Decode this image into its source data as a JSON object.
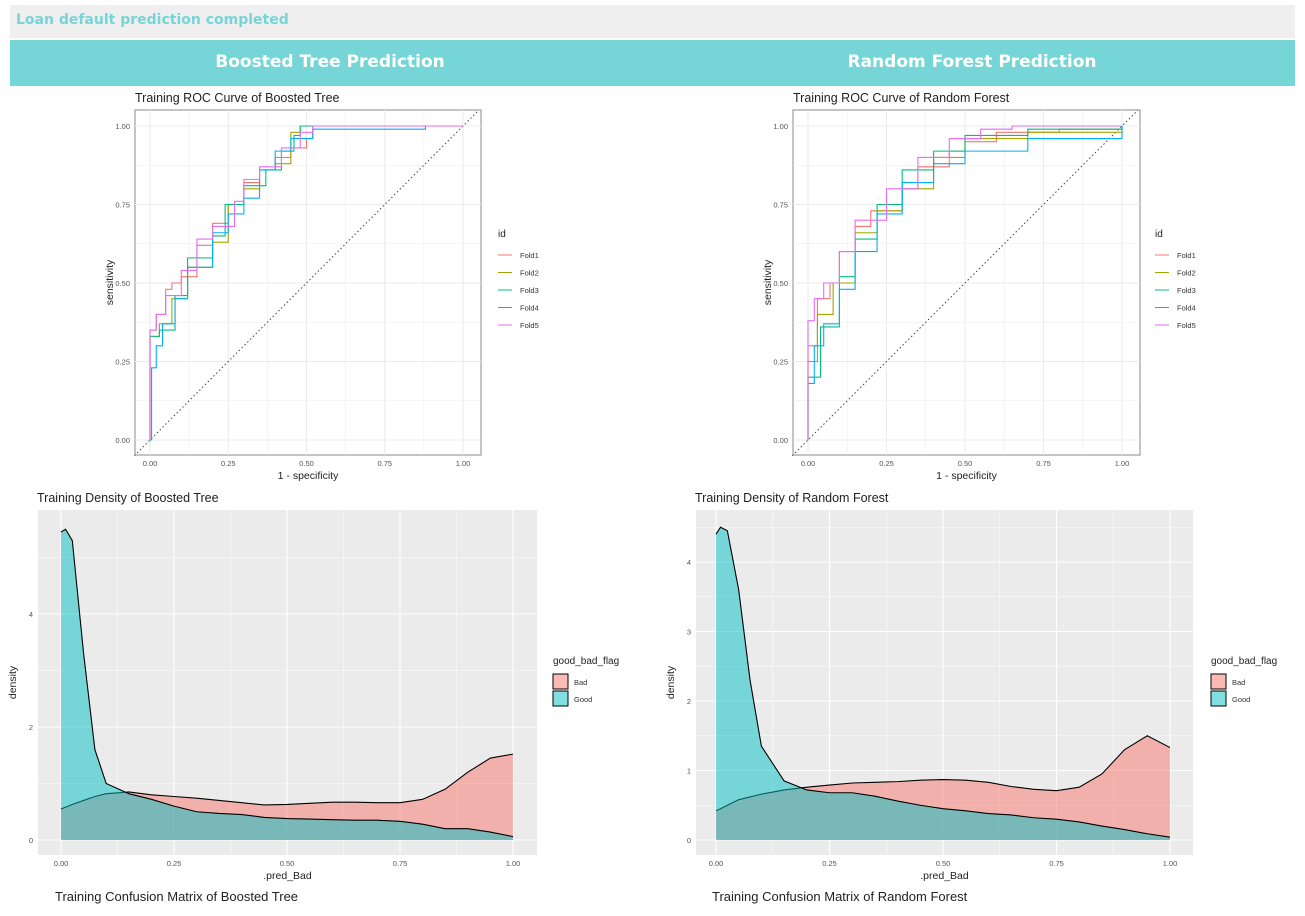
{
  "status": "Loan default prediction completed",
  "headers": [
    "Boosted Tree Prediction",
    "Random Forest Prediction"
  ],
  "confusion_titles": [
    "Training Confusion Matrix of Boosted Tree",
    "Training Confusion Matrix of Random Forest"
  ],
  "colors": {
    "accent": "#76d5d6",
    "folds": [
      "#F8766D",
      "#A3A500",
      "#00BF7D",
      "#00B0F6",
      "#E76BF3"
    ],
    "bad": "#F8766D",
    "good": "#00BFC4"
  },
  "chart_data": [
    {
      "type": "line",
      "title": "Training ROC Curve of Boosted Tree",
      "xlabel": "1 - specificity",
      "ylabel": "sensitivity",
      "xlim": [
        0,
        1
      ],
      "ylim": [
        0,
        1
      ],
      "xticks": [
        "0.00",
        "0.25",
        "0.50",
        "0.75",
        "1.00"
      ],
      "yticks": [
        "0.00",
        "0.25",
        "0.50",
        "0.75",
        "1.00"
      ],
      "legend_title": "id",
      "legend": "right",
      "series": [
        {
          "name": "Fold1",
          "points": [
            [
              0,
              0
            ],
            [
              0,
              0.35
            ],
            [
              0.02,
              0.4
            ],
            [
              0.05,
              0.48
            ],
            [
              0.07,
              0.5
            ],
            [
              0.1,
              0.52
            ],
            [
              0.15,
              0.62
            ],
            [
              0.2,
              0.69
            ],
            [
              0.25,
              0.75
            ],
            [
              0.3,
              0.82
            ],
            [
              0.35,
              0.86
            ],
            [
              0.4,
              0.9
            ],
            [
              0.45,
              0.93
            ],
            [
              0.5,
              0.96
            ],
            [
              0.52,
              1
            ],
            [
              1,
              1
            ]
          ]
        },
        {
          "name": "Fold2",
          "points": [
            [
              0,
              0
            ],
            [
              0,
              0.33
            ],
            [
              0.03,
              0.37
            ],
            [
              0.07,
              0.45
            ],
            [
              0.12,
              0.55
            ],
            [
              0.2,
              0.63
            ],
            [
              0.25,
              0.75
            ],
            [
              0.3,
              0.8
            ],
            [
              0.35,
              0.86
            ],
            [
              0.4,
              0.88
            ],
            [
              0.45,
              0.98
            ],
            [
              0.48,
              1
            ],
            [
              1,
              1
            ]
          ]
        },
        {
          "name": "Fold3",
          "points": [
            [
              0,
              0
            ],
            [
              0,
              0.33
            ],
            [
              0.03,
              0.35
            ],
            [
              0.08,
              0.46
            ],
            [
              0.12,
              0.58
            ],
            [
              0.2,
              0.65
            ],
            [
              0.24,
              0.75
            ],
            [
              0.3,
              0.81
            ],
            [
              0.37,
              0.86
            ],
            [
              0.42,
              0.92
            ],
            [
              0.46,
              0.97
            ],
            [
              0.48,
              1
            ],
            [
              1,
              1
            ]
          ]
        },
        {
          "name": "Fold4",
          "points": [
            [
              0,
              0
            ],
            [
              0.005,
              0.23
            ],
            [
              0.02,
              0.3
            ],
            [
              0.04,
              0.37
            ],
            [
              0.08,
              0.45
            ],
            [
              0.12,
              0.55
            ],
            [
              0.2,
              0.66
            ],
            [
              0.25,
              0.72
            ],
            [
              0.3,
              0.77
            ],
            [
              0.35,
              0.86
            ],
            [
              0.4,
              0.92
            ],
            [
              0.45,
              0.96
            ],
            [
              0.52,
              0.99
            ],
            [
              0.88,
              0.99
            ],
            [
              0.88,
              1
            ],
            [
              1,
              1
            ]
          ]
        },
        {
          "name": "Fold5",
          "points": [
            [
              0,
              0
            ],
            [
              0,
              0.35
            ],
            [
              0.02,
              0.4
            ],
            [
              0.05,
              0.46
            ],
            [
              0.1,
              0.54
            ],
            [
              0.15,
              0.64
            ],
            [
              0.2,
              0.68
            ],
            [
              0.27,
              0.76
            ],
            [
              0.3,
              0.83
            ],
            [
              0.35,
              0.87
            ],
            [
              0.42,
              0.93
            ],
            [
              0.48,
              0.98
            ],
            [
              0.52,
              1
            ],
            [
              1,
              1
            ]
          ]
        }
      ]
    },
    {
      "type": "line",
      "title": "Training ROC Curve of Random Forest",
      "xlabel": "1 - specificity",
      "ylabel": "sensitivity",
      "xlim": [
        0,
        1
      ],
      "ylim": [
        0,
        1
      ],
      "xticks": [
        "0.00",
        "0.25",
        "0.50",
        "0.75",
        "1.00"
      ],
      "yticks": [
        "0.00",
        "0.25",
        "0.50",
        "0.75",
        "1.00"
      ],
      "legend_title": "id",
      "legend": "right",
      "series": [
        {
          "name": "Fold1",
          "points": [
            [
              0,
              0
            ],
            [
              0,
              0.3
            ],
            [
              0.03,
              0.45
            ],
            [
              0.07,
              0.5
            ],
            [
              0.1,
              0.6
            ],
            [
              0.15,
              0.68
            ],
            [
              0.2,
              0.73
            ],
            [
              0.3,
              0.8
            ],
            [
              0.35,
              0.87
            ],
            [
              0.45,
              0.92
            ],
            [
              0.5,
              0.95
            ],
            [
              0.6,
              0.98
            ],
            [
              0.8,
              0.99
            ],
            [
              1,
              1
            ]
          ]
        },
        {
          "name": "Fold2",
          "points": [
            [
              0,
              0
            ],
            [
              0,
              0.25
            ],
            [
              0.03,
              0.4
            ],
            [
              0.08,
              0.5
            ],
            [
              0.15,
              0.66
            ],
            [
              0.22,
              0.73
            ],
            [
              0.3,
              0.8
            ],
            [
              0.4,
              0.9
            ],
            [
              0.5,
              0.96
            ],
            [
              0.7,
              0.98
            ],
            [
              1,
              1
            ]
          ]
        },
        {
          "name": "Fold3",
          "points": [
            [
              0,
              0
            ],
            [
              0,
              0.2
            ],
            [
              0.04,
              0.36
            ],
            [
              0.1,
              0.52
            ],
            [
              0.15,
              0.64
            ],
            [
              0.22,
              0.75
            ],
            [
              0.3,
              0.86
            ],
            [
              0.4,
              0.92
            ],
            [
              0.5,
              0.97
            ],
            [
              0.7,
              0.99
            ],
            [
              1,
              1
            ]
          ]
        },
        {
          "name": "Fold4",
          "points": [
            [
              0,
              0
            ],
            [
              0,
              0.18
            ],
            [
              0.02,
              0.3
            ],
            [
              0.05,
              0.37
            ],
            [
              0.1,
              0.48
            ],
            [
              0.15,
              0.6
            ],
            [
              0.22,
              0.72
            ],
            [
              0.3,
              0.82
            ],
            [
              0.4,
              0.88
            ],
            [
              0.5,
              0.92
            ],
            [
              0.7,
              0.96
            ],
            [
              1,
              1
            ]
          ]
        },
        {
          "name": "Fold5",
          "points": [
            [
              0,
              0
            ],
            [
              0,
              0.38
            ],
            [
              0.02,
              0.45
            ],
            [
              0.05,
              0.5
            ],
            [
              0.1,
              0.6
            ],
            [
              0.15,
              0.7
            ],
            [
              0.25,
              0.8
            ],
            [
              0.35,
              0.9
            ],
            [
              0.45,
              0.96
            ],
            [
              0.55,
              0.99
            ],
            [
              0.65,
              1
            ],
            [
              1,
              1
            ]
          ]
        }
      ]
    },
    {
      "type": "area",
      "title": "Training Density of Boosted Tree",
      "xlabel": ".pred_Bad",
      "ylabel": "density",
      "xlim": [
        0,
        1
      ],
      "ylim": [
        0,
        5.5
      ],
      "xticks": [
        "0.00",
        "0.25",
        "0.50",
        "0.75",
        "1.00"
      ],
      "yticks": [
        "0",
        "2",
        "4"
      ],
      "legend_title": "good_bad_flag",
      "legend": "right",
      "x": [
        0,
        0.01,
        0.025,
        0.05,
        0.075,
        0.1,
        0.15,
        0.2,
        0.25,
        0.3,
        0.35,
        0.4,
        0.45,
        0.5,
        0.55,
        0.6,
        0.65,
        0.7,
        0.75,
        0.8,
        0.85,
        0.9,
        0.95,
        1.0
      ],
      "series": [
        {
          "name": "Bad",
          "values": [
            0.55,
            0.58,
            0.63,
            0.7,
            0.77,
            0.82,
            0.85,
            0.8,
            0.77,
            0.74,
            0.7,
            0.66,
            0.62,
            0.63,
            0.65,
            0.67,
            0.67,
            0.66,
            0.66,
            0.72,
            0.9,
            1.2,
            1.45,
            1.52
          ]
        },
        {
          "name": "Good",
          "values": [
            5.45,
            5.5,
            5.3,
            3.3,
            1.6,
            1.0,
            0.82,
            0.72,
            0.6,
            0.5,
            0.47,
            0.45,
            0.4,
            0.38,
            0.37,
            0.36,
            0.35,
            0.35,
            0.33,
            0.28,
            0.2,
            0.2,
            0.14,
            0.06
          ]
        }
      ]
    },
    {
      "type": "area",
      "title": "Training Density of Random Forest",
      "xlabel": ".pred_Bad",
      "ylabel": "density",
      "xlim": [
        0,
        1
      ],
      "ylim": [
        0,
        4.5
      ],
      "xticks": [
        "0.00",
        "0.25",
        "0.50",
        "0.75",
        "1.00"
      ],
      "yticks": [
        "0",
        "1",
        "2",
        "3",
        "4"
      ],
      "legend_title": "good_bad_flag",
      "legend": "right",
      "x": [
        0,
        0.01,
        0.025,
        0.05,
        0.075,
        0.1,
        0.15,
        0.2,
        0.25,
        0.3,
        0.35,
        0.4,
        0.45,
        0.5,
        0.55,
        0.6,
        0.65,
        0.7,
        0.75,
        0.8,
        0.85,
        0.9,
        0.95,
        1.0
      ],
      "series": [
        {
          "name": "Bad",
          "values": [
            0.42,
            0.45,
            0.5,
            0.58,
            0.62,
            0.66,
            0.72,
            0.76,
            0.79,
            0.82,
            0.83,
            0.84,
            0.86,
            0.87,
            0.86,
            0.83,
            0.77,
            0.73,
            0.71,
            0.76,
            0.95,
            1.3,
            1.5,
            1.33
          ]
        },
        {
          "name": "Good",
          "values": [
            4.4,
            4.5,
            4.45,
            3.6,
            2.3,
            1.35,
            0.85,
            0.72,
            0.68,
            0.68,
            0.63,
            0.56,
            0.5,
            0.45,
            0.42,
            0.38,
            0.36,
            0.32,
            0.3,
            0.26,
            0.2,
            0.15,
            0.09,
            0.04
          ]
        }
      ]
    }
  ]
}
